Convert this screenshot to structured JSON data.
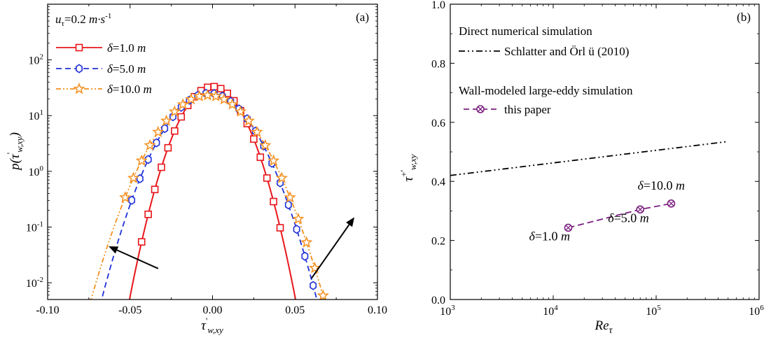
{
  "chart_data": [
    {
      "type": "line",
      "panel": "(a)",
      "xlabel": "τ'w,xy",
      "ylabel": "p(τ'w,xy)",
      "ylog": true,
      "xlim": [
        -0.1,
        0.1
      ],
      "ylim": [
        0.005,
        1000
      ],
      "xticks": [
        "-0.10",
        "-0.05",
        "0.00",
        "0.05",
        "0.10"
      ],
      "yticks": [
        {
          "v": 0.01,
          "b": "10",
          "e": "-2"
        },
        {
          "v": 0.1,
          "b": "10",
          "e": "-1"
        },
        {
          "v": 1,
          "b": "10",
          "e": "0"
        },
        {
          "v": 10,
          "b": "10",
          "e": "1"
        },
        {
          "v": 100,
          "b": "10",
          "e": "2"
        }
      ],
      "header": {
        "lhs": "u",
        "sub": "τ",
        "rhs": "=0.2 ",
        "unit": "m·s",
        "sup": "-1"
      },
      "legend": [
        "δ=1.0 m",
        "δ=5.0 m",
        "δ=10.0 m"
      ],
      "series": [
        {
          "name": "δ=1.0 m",
          "color": "#e8161b",
          "marker": "square",
          "mu": 0.0,
          "sigma": 0.012,
          "x": [
            -0.043,
            -0.039,
            -0.035,
            -0.031,
            -0.027,
            -0.023,
            -0.019,
            -0.015,
            -0.011,
            -0.007,
            -0.003,
            0.001,
            0.005,
            0.009,
            0.013,
            0.017,
            0.021,
            0.025,
            0.029,
            0.033,
            0.037,
            0.041
          ]
        },
        {
          "name": "δ=5.0 m",
          "color": "#1f30d8",
          "marker": "hexagon",
          "mu": -0.002,
          "sigma": 0.0158,
          "x": [
            -0.049,
            -0.044,
            -0.039,
            -0.034,
            -0.029,
            -0.024,
            -0.019,
            -0.014,
            -0.009,
            -0.004,
            0.001,
            0.006,
            0.011,
            0.016,
            0.021,
            0.026,
            0.031,
            0.036,
            0.041,
            0.046,
            0.051,
            0.056,
            0.061,
            0.066
          ]
        },
        {
          "name": "δ=10.0 m",
          "color": "#f5901f",
          "marker": "star",
          "mu": -0.003,
          "sigma": 0.0172,
          "x": [
            -0.053,
            -0.048,
            -0.043,
            -0.038,
            -0.033,
            -0.028,
            -0.023,
            -0.018,
            -0.013,
            -0.008,
            -0.003,
            0.002,
            0.007,
            0.012,
            0.017,
            0.022,
            0.027,
            0.032,
            0.037,
            0.042,
            0.047,
            0.052,
            0.057,
            0.062,
            0.067,
            0.072,
            0.077
          ]
        }
      ],
      "arrows": [
        {
          "from": [
            -0.033,
            0.018
          ],
          "to": [
            -0.063,
            0.045
          ]
        },
        {
          "from": [
            0.06,
            0.012
          ],
          "to": [
            0.086,
            0.15
          ]
        }
      ]
    },
    {
      "type": "line",
      "panel": "(b)",
      "xlabel": "Reτ",
      "ylabel": "τ+'w,xy",
      "xlog": true,
      "xlim": [
        1000,
        1000000
      ],
      "ylim": [
        0.0,
        1.0
      ],
      "xticks": [
        {
          "v": 1000,
          "b": "10",
          "e": "3"
        },
        {
          "v": 10000,
          "b": "10",
          "e": "4"
        },
        {
          "v": 100000,
          "b": "10",
          "e": "5"
        },
        {
          "v": 1000000,
          "b": "10",
          "e": "6"
        }
      ],
      "yticks": [
        "0.0",
        "0.2",
        "0.4",
        "0.6",
        "0.8",
        "1.0"
      ],
      "legend": {
        "heading1": "Direct numerical simulation",
        "entry1": "Schlatter and Örl ü (2010)",
        "heading2": "Wall-modeled large-eddy simulation",
        "entry2": "this paper"
      },
      "series": [
        {
          "name": "Schlatter and Örl ü (2010)",
          "color": "#000000",
          "style": "dash-dot-dot",
          "x": [
            1000,
            500000
          ],
          "y": [
            0.42,
            0.535
          ]
        },
        {
          "name": "this paper",
          "color": "#7b1f80",
          "style": "dashed",
          "marker": "circle-x",
          "x": [
            14000,
            70000,
            140000
          ],
          "y": [
            0.243,
            0.305,
            0.325
          ]
        }
      ],
      "annotations": [
        {
          "text": "δ=1.0 m",
          "x": 14000,
          "y": 0.2
        },
        {
          "text": "δ=5.0 m",
          "x": 70000,
          "y": 0.262
        },
        {
          "text": "δ=10.0 m",
          "x": 140000,
          "y": 0.372
        }
      ]
    }
  ]
}
